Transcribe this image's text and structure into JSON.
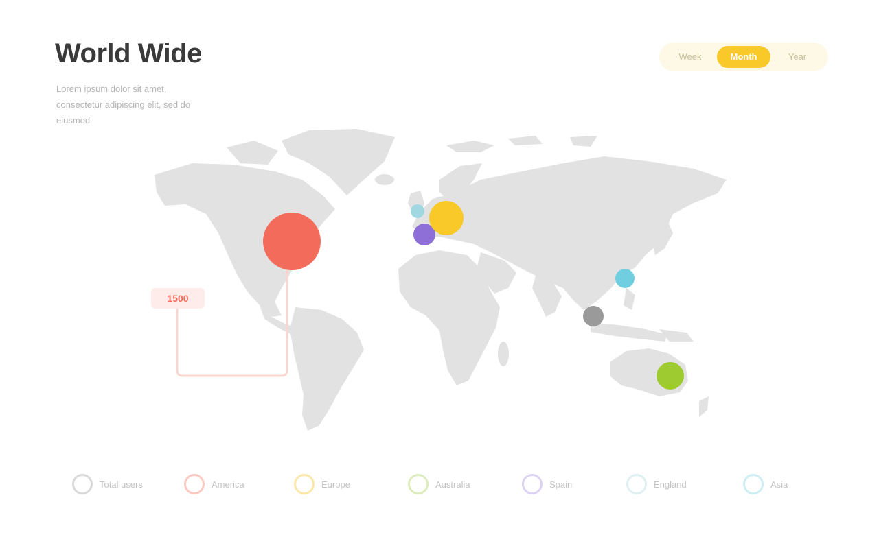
{
  "header": {
    "title": "World Wide",
    "subtitle": "Lorem ipsum dolor sit amet, consectetur adipiscing elit, sed do eiusmod"
  },
  "tabs": [
    {
      "label": "Week",
      "active": false
    },
    {
      "label": "Month",
      "active": true
    },
    {
      "label": "Year",
      "active": false
    }
  ],
  "callout": {
    "label": "1500"
  },
  "markers": [
    {
      "name": "North America",
      "color": "#f26b5b"
    },
    {
      "name": "Western Europe",
      "color": "#f8c928"
    },
    {
      "name": "Iberia",
      "color": "#8e6fd8"
    },
    {
      "name": "UK",
      "color": "#9fd8e0"
    },
    {
      "name": "East Asia",
      "color": "#6fcfe0"
    },
    {
      "name": "South East Asia",
      "color": "#9a9a9a"
    },
    {
      "name": "Australia",
      "color": "#9ecb2f"
    }
  ],
  "legend": [
    {
      "label": "Total users",
      "color": "#d9d9d9"
    },
    {
      "label": "America",
      "color": "#f9c9c2"
    },
    {
      "label": "Europe",
      "color": "#fbe7a8"
    },
    {
      "label": "Australia",
      "color": "#dcecbd"
    },
    {
      "label": "Spain",
      "color": "#dcd2f2"
    },
    {
      "label": "England",
      "color": "#dff0f2"
    },
    {
      "label": "Asia",
      "color": "#cdeef3"
    }
  ]
}
